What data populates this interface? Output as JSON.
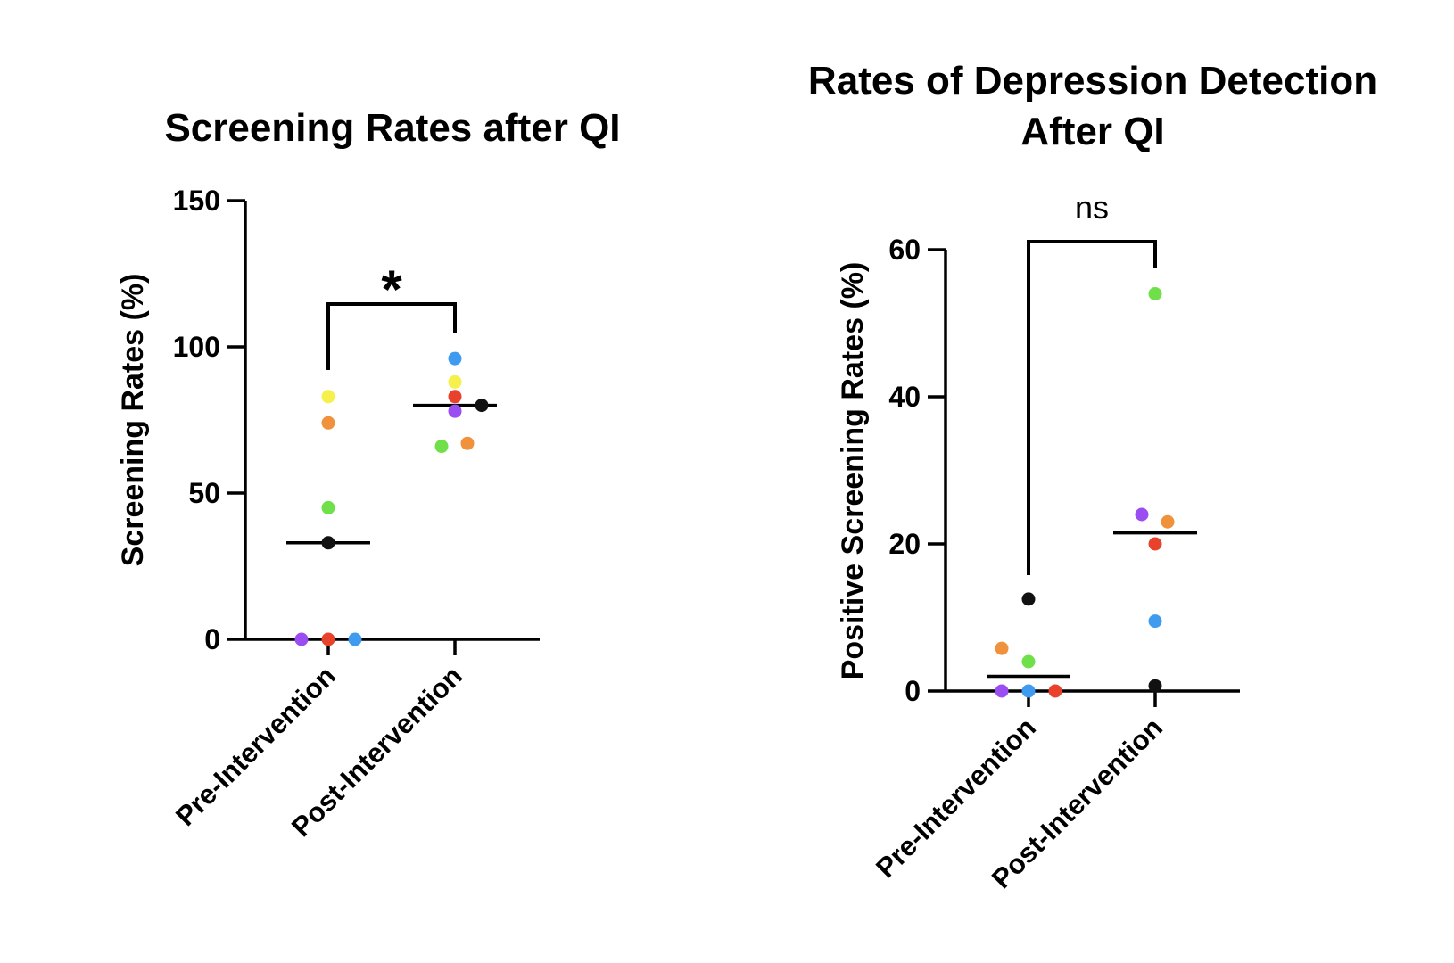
{
  "chart_data": [
    {
      "type": "scatter",
      "title_lines": [
        "Screening Rates after QI"
      ],
      "xlabel": "",
      "ylabel": "Screening Rates (%)",
      "ylim": [
        0,
        150
      ],
      "yticks": [
        0,
        50,
        100,
        150
      ],
      "categories": [
        "Pre-Intervention",
        "Post-Intervention"
      ],
      "series": [
        {
          "category": "Pre-Intervention",
          "median": 33,
          "points": [
            {
              "value": 0,
              "color": "#9a4df0"
            },
            {
              "value": 0,
              "color": "#e8412c"
            },
            {
              "value": 0,
              "color": "#3f9bf0"
            },
            {
              "value": 33,
              "color": "#111111"
            },
            {
              "value": 45,
              "color": "#6fe04a"
            },
            {
              "value": 74,
              "color": "#f0913c"
            },
            {
              "value": 83,
              "color": "#f5f04a"
            }
          ]
        },
        {
          "category": "Post-Intervention",
          "median": 80,
          "points": [
            {
              "value": 96,
              "color": "#3f9bf0"
            },
            {
              "value": 88,
              "color": "#f5f04a"
            },
            {
              "value": 83,
              "color": "#e8412c"
            },
            {
              "value": 80,
              "color": "#111111"
            },
            {
              "value": 78,
              "color": "#9a4df0"
            },
            {
              "value": 67,
              "color": "#f0913c"
            },
            {
              "value": 66,
              "color": "#6fe04a"
            }
          ]
        }
      ],
      "significance": {
        "label": "*",
        "between": [
          "Pre-Intervention",
          "Post-Intervention"
        ]
      }
    },
    {
      "type": "scatter",
      "title_lines": [
        "Rates of Depression Detection",
        "After QI"
      ],
      "xlabel": "",
      "ylabel": "Positive Screening Rates (%)",
      "ylim": [
        0,
        60
      ],
      "yticks": [
        0,
        20,
        40,
        60
      ],
      "categories": [
        "Pre-Intervention",
        "Post-Intervention"
      ],
      "series": [
        {
          "category": "Pre-Intervention",
          "median": 2,
          "points": [
            {
              "value": 12.5,
              "color": "#111111"
            },
            {
              "value": 5.8,
              "color": "#f0913c"
            },
            {
              "value": 4,
              "color": "#6fe04a"
            },
            {
              "value": 0,
              "color": "#9a4df0"
            },
            {
              "value": 0,
              "color": "#3f9bf0"
            },
            {
              "value": 0,
              "color": "#e8412c"
            }
          ]
        },
        {
          "category": "Post-Intervention",
          "median": 21.5,
          "points": [
            {
              "value": 54,
              "color": "#6fe04a"
            },
            {
              "value": 24,
              "color": "#9a4df0"
            },
            {
              "value": 23,
              "color": "#f0913c"
            },
            {
              "value": 20,
              "color": "#e8412c"
            },
            {
              "value": 9.5,
              "color": "#3f9bf0"
            },
            {
              "value": 0.7,
              "color": "#111111"
            }
          ]
        }
      ],
      "significance": {
        "label": "ns",
        "between": [
          "Pre-Intervention",
          "Post-Intervention"
        ]
      }
    }
  ]
}
